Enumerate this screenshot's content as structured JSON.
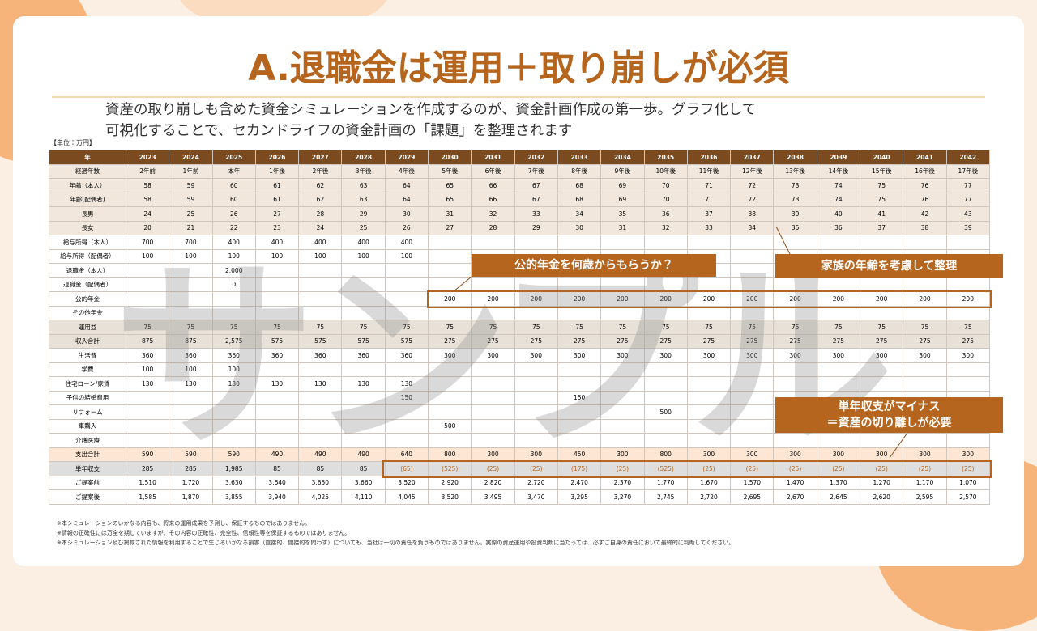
{
  "header": {
    "title": "A.退職金は運用＋取り崩しが必須",
    "subtitle": [
      "資産の取り崩しも含めた資金シミュレーションを作成するのが、資金計画作成の第一歩。グラフ化して",
      "可視化することで、セカンドライフの資金計画の「課題」を整理されます"
    ]
  },
  "unit": "【単位：万円】",
  "watermark": "サンプル",
  "table": {
    "columns": [
      "年",
      "2023",
      "2024",
      "2025",
      "2026",
      "2027",
      "2028",
      "2029",
      "2030",
      "2031",
      "2032",
      "2033",
      "2034",
      "2035",
      "2036",
      "2037",
      "2038",
      "2039",
      "2040",
      "2041",
      "2042"
    ],
    "rows": [
      {
        "label": "経過年数",
        "cells": [
          "2年前",
          "1年前",
          "本年",
          "1年後",
          "2年後",
          "3年後",
          "4年後",
          "5年後",
          "6年後",
          "7年後",
          "8年後",
          "9年後",
          "10年後",
          "11年後",
          "12年後",
          "13年後",
          "14年後",
          "15年後",
          "16年後",
          "17年後"
        ]
      },
      {
        "label": "年齢（本人）",
        "cells": [
          "58",
          "59",
          "60",
          "61",
          "62",
          "63",
          "64",
          "65",
          "66",
          "67",
          "68",
          "69",
          "70",
          "71",
          "72",
          "73",
          "74",
          "75",
          "76",
          "77"
        ]
      },
      {
        "label": "年齢(配偶者)",
        "cells": [
          "58",
          "59",
          "60",
          "61",
          "62",
          "63",
          "64",
          "65",
          "66",
          "67",
          "68",
          "69",
          "70",
          "71",
          "72",
          "73",
          "74",
          "75",
          "76",
          "77"
        ]
      },
      {
        "label": "長男",
        "cells": [
          "24",
          "25",
          "26",
          "27",
          "28",
          "29",
          "30",
          "31",
          "32",
          "33",
          "34",
          "35",
          "36",
          "37",
          "38",
          "39",
          "40",
          "41",
          "42",
          "43"
        ]
      },
      {
        "label": "長女",
        "cells": [
          "20",
          "21",
          "22",
          "23",
          "24",
          "25",
          "26",
          "27",
          "28",
          "29",
          "30",
          "31",
          "32",
          "33",
          "34",
          "35",
          "36",
          "37",
          "38",
          "39"
        ]
      },
      {
        "label": "給与所得（本人）",
        "cells": [
          "700",
          "700",
          "400",
          "400",
          "400",
          "400",
          "400",
          null,
          null,
          null,
          null,
          null,
          null,
          null,
          null,
          null,
          null,
          null,
          null,
          null
        ]
      },
      {
        "label": "給与所得（配偶者）",
        "cells": [
          "100",
          "100",
          "100",
          "100",
          "100",
          "100",
          "100",
          null,
          null,
          null,
          null,
          null,
          null,
          null,
          null,
          null,
          null,
          null,
          null,
          null
        ]
      },
      {
        "label": "退職金（本人）",
        "cells": [
          null,
          null,
          "2,000",
          null,
          null,
          null,
          null,
          null,
          null,
          null,
          null,
          null,
          null,
          null,
          null,
          null,
          null,
          null,
          null,
          null
        ]
      },
      {
        "label": "退職金（配偶者）",
        "cells": [
          null,
          null,
          "0",
          null,
          null,
          null,
          null,
          null,
          null,
          null,
          null,
          null,
          null,
          null,
          null,
          null,
          null,
          null,
          null,
          null
        ]
      },
      {
        "label": "公的年金",
        "cells": [
          null,
          null,
          null,
          null,
          null,
          null,
          null,
          "200",
          "200",
          "200",
          "200",
          "200",
          "200",
          "200",
          "200",
          "200",
          "200",
          "200",
          "200",
          "200"
        ]
      },
      {
        "label": "その他年金",
        "cells": [
          null,
          null,
          null,
          null,
          null,
          null,
          null,
          null,
          null,
          null,
          null,
          null,
          null,
          null,
          null,
          null,
          null,
          null,
          null,
          null
        ]
      },
      {
        "label": "運用益",
        "cells": [
          "75",
          "75",
          "75",
          "75",
          "75",
          "75",
          "75",
          "75",
          "75",
          "75",
          "75",
          "75",
          "75",
          "75",
          "75",
          "75",
          "75",
          "75",
          "75",
          "75"
        ]
      },
      {
        "label": "収入合計",
        "cells": [
          "875",
          "875",
          "2,575",
          "575",
          "575",
          "575",
          "575",
          "275",
          "275",
          "275",
          "275",
          "275",
          "275",
          "275",
          "275",
          "275",
          "275",
          "275",
          "275",
          "275"
        ]
      },
      {
        "label": "生活費",
        "cells": [
          "360",
          "360",
          "360",
          "360",
          "360",
          "360",
          "360",
          "300",
          "300",
          "300",
          "300",
          "300",
          "300",
          "300",
          "300",
          "300",
          "300",
          "300",
          "300",
          "300"
        ]
      },
      {
        "label": "学費",
        "cells": [
          "100",
          "100",
          "100",
          null,
          null,
          null,
          null,
          null,
          null,
          null,
          null,
          null,
          null,
          null,
          null,
          null,
          null,
          null,
          null,
          null
        ]
      },
      {
        "label": "住宅ローン/家賃",
        "cells": [
          "130",
          "130",
          "130",
          "130",
          "130",
          "130",
          "130",
          null,
          null,
          null,
          null,
          null,
          null,
          null,
          null,
          null,
          null,
          null,
          null,
          null
        ]
      },
      {
        "label": "子供の結婚費用",
        "cells": [
          null,
          null,
          null,
          null,
          null,
          null,
          "150",
          null,
          null,
          null,
          "150",
          null,
          null,
          null,
          null,
          null,
          null,
          null,
          null,
          null
        ]
      },
      {
        "label": "リフォーム",
        "cells": [
          null,
          null,
          null,
          null,
          null,
          null,
          null,
          null,
          null,
          null,
          null,
          null,
          "500",
          null,
          null,
          null,
          null,
          null,
          null,
          null
        ]
      },
      {
        "label": "車購入",
        "cells": [
          null,
          null,
          null,
          null,
          null,
          null,
          null,
          "500",
          null,
          null,
          null,
          null,
          null,
          null,
          null,
          null,
          null,
          null,
          null,
          null
        ]
      },
      {
        "label": "介護医療",
        "cells": [
          null,
          null,
          null,
          null,
          null,
          null,
          null,
          null,
          null,
          null,
          null,
          null,
          null,
          null,
          null,
          null,
          null,
          null,
          null,
          null
        ]
      },
      {
        "label": "支出合計",
        "cells": [
          "590",
          "590",
          "590",
          "490",
          "490",
          "490",
          "640",
          "800",
          "300",
          "300",
          "450",
          "300",
          "800",
          "300",
          "300",
          "300",
          "300",
          "300",
          "300",
          "300"
        ]
      },
      {
        "label": "単年収支",
        "cells": [
          "285",
          "285",
          "1,985",
          "85",
          "85",
          "85",
          "(65)",
          "(525)",
          "(25)",
          "(25)",
          "(175)",
          "(25)",
          "(525)",
          "(25)",
          "(25)",
          "(25)",
          "(25)",
          "(25)",
          "(25)",
          "(25)"
        ]
      },
      {
        "label": "ご提案前",
        "cells": [
          "1,510",
          "1,720",
          "3,630",
          "3,640",
          "3,650",
          "3,660",
          "3,520",
          "2,920",
          "2,820",
          "2,720",
          "2,470",
          "2,370",
          "1,770",
          "1,670",
          "1,570",
          "1,470",
          "1,370",
          "1,270",
          "1,170",
          "1,070"
        ]
      },
      {
        "label": "ご提案後",
        "cells": [
          "1,585",
          "1,870",
          "3,855",
          "3,940",
          "4,025",
          "4,110",
          "4,045",
          "3,520",
          "3,495",
          "3,470",
          "3,295",
          "3,270",
          "2,745",
          "2,720",
          "2,695",
          "2,670",
          "2,645",
          "2,620",
          "2,595",
          "2,570"
        ]
      }
    ]
  },
  "callouts": [
    {
      "text": [
        "公的年金を何歳からもらうか？"
      ]
    },
    {
      "text": [
        "家族の年齢を考慮して整理"
      ]
    },
    {
      "text": [
        "単年収支がマイナス",
        "＝資産の切り離しが必要"
      ]
    }
  ],
  "footnotes": [
    "※本シミュレーションのいかなる内容も、将来の運用成果を予測し、保証するものではありません。",
    "※情報の正確性には万全を期していますが、その内容の正確性、完全性、信頼性等を保証するものではありません。",
    "※本シミュレーション及び掲載された情報を利用することで生じるいかなる損害（直接的、間接的を問わず）についても、当社は一切の責任を負うものではありません。実際の資産運用や投資判断に当たっては、必ずご自身の責任において最終的に判断してください。"
  ]
}
